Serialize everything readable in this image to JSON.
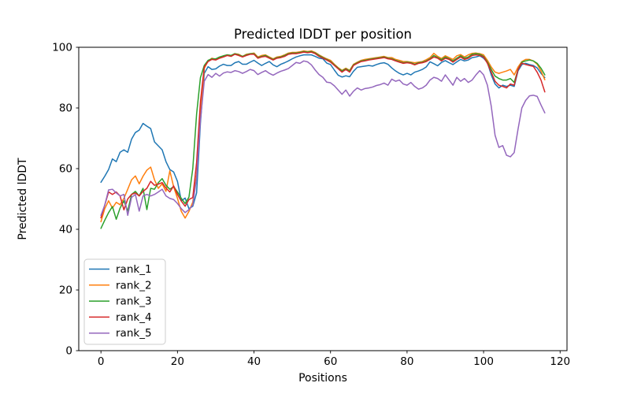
{
  "figure": {
    "background": "#ffffff",
    "axis_color": "#000000",
    "title": "Predicted lDDT per position",
    "xlabel": "Positions",
    "ylabel": "Predicted lDDT"
  },
  "legend": {
    "position": "lower left",
    "border_color": "#cccccc",
    "entries": [
      "rank_1",
      "rank_2",
      "rank_3",
      "rank_4",
      "rank_5"
    ]
  },
  "chart_data": {
    "type": "line",
    "title": "Predicted lDDT per position",
    "xlabel": "Positions",
    "ylabel": "Predicted lDDT",
    "xlim": [
      -5.8,
      121.8
    ],
    "ylim": [
      0,
      100
    ],
    "xticks": [
      0,
      20,
      40,
      60,
      80,
      100,
      120
    ],
    "yticks": [
      0,
      20,
      40,
      60,
      80,
      100
    ],
    "grid": false,
    "line_width": 1.5,
    "x": [
      0,
      1,
      2,
      3,
      4,
      5,
      6,
      7,
      8,
      9,
      10,
      11,
      12,
      13,
      14,
      15,
      16,
      17,
      18,
      19,
      20,
      21,
      22,
      23,
      24,
      25,
      26,
      27,
      28,
      29,
      30,
      31,
      32,
      33,
      34,
      35,
      36,
      37,
      38,
      39,
      40,
      41,
      42,
      43,
      44,
      45,
      46,
      47,
      48,
      49,
      50,
      51,
      52,
      53,
      54,
      55,
      56,
      57,
      58,
      59,
      60,
      61,
      62,
      63,
      64,
      65,
      66,
      67,
      68,
      69,
      70,
      71,
      72,
      73,
      74,
      75,
      76,
      77,
      78,
      79,
      80,
      81,
      82,
      83,
      84,
      85,
      86,
      87,
      88,
      89,
      90,
      91,
      92,
      93,
      94,
      95,
      96,
      97,
      98,
      99,
      100,
      101,
      102,
      103,
      104,
      105,
      106,
      107,
      108,
      109,
      110,
      111,
      112,
      113,
      114,
      115,
      116
    ],
    "series": [
      {
        "name": "rank_1",
        "color": "#1f77b4",
        "values": [
          55.5,
          57.5,
          59.7,
          63.2,
          62.3,
          65.4,
          66.2,
          65.4,
          69.7,
          71.9,
          72.7,
          74.9,
          74.0,
          73.2,
          68.8,
          67.5,
          66.2,
          62.3,
          59.7,
          58.9,
          55.8,
          49.4,
          50.3,
          46.8,
          47.6,
          52.0,
          75.0,
          91.4,
          93.6,
          92.7,
          92.9,
          93.8,
          94.4,
          94.0,
          94.0,
          94.9,
          95.3,
          94.4,
          94.4,
          95.1,
          95.7,
          94.8,
          94.0,
          94.7,
          95.3,
          94.2,
          93.6,
          94.4,
          94.9,
          95.5,
          96.2,
          96.8,
          97.2,
          97.5,
          97.5,
          97.5,
          97.0,
          96.4,
          96.2,
          94.8,
          94.3,
          92.5,
          90.8,
          90.2,
          90.6,
          90.3,
          92.1,
          93.4,
          93.6,
          93.8,
          94.0,
          93.8,
          94.3,
          94.7,
          94.9,
          94.4,
          93.2,
          92.2,
          91.4,
          90.9,
          91.4,
          90.9,
          91.8,
          92.2,
          92.7,
          93.5,
          95.2,
          94.6,
          93.9,
          95.0,
          95.6,
          94.9,
          94.3,
          95.2,
          96.0,
          95.5,
          95.8,
          96.6,
          96.8,
          97.2,
          96.4,
          95.0,
          90.9,
          87.9,
          86.6,
          87.5,
          87.1,
          87.5,
          87.1,
          92.2,
          94.3,
          94.7,
          94.3,
          94.0,
          93.2,
          91.4,
          90.0
        ]
      },
      {
        "name": "rank_2",
        "color": "#ff7f0e",
        "values": [
          42.5,
          46.8,
          49.4,
          47.0,
          48.9,
          48.1,
          50.2,
          53.2,
          56.3,
          57.6,
          55.0,
          57.5,
          59.5,
          60.5,
          56.3,
          53.5,
          55.0,
          52.5,
          59.3,
          54.0,
          50.2,
          45.9,
          43.7,
          45.9,
          49.0,
          58.0,
          79.0,
          93.0,
          95.5,
          96.4,
          96.0,
          96.6,
          97.0,
          97.5,
          97.3,
          97.9,
          97.7,
          97.0,
          97.7,
          97.9,
          98.1,
          96.8,
          97.3,
          97.5,
          96.8,
          96.2,
          96.8,
          97.0,
          97.5,
          98.1,
          98.3,
          98.3,
          98.5,
          98.8,
          98.6,
          98.8,
          98.3,
          97.5,
          96.8,
          96.2,
          95.7,
          94.4,
          93.3,
          92.4,
          93.1,
          92.4,
          94.4,
          95.1,
          95.7,
          96.0,
          96.2,
          96.4,
          96.6,
          96.8,
          97.0,
          96.6,
          96.6,
          96.0,
          95.7,
          95.3,
          95.3,
          95.1,
          94.9,
          95.1,
          95.3,
          95.9,
          96.6,
          98.0,
          97.0,
          96.3,
          97.2,
          96.6,
          96.0,
          97.2,
          97.6,
          96.8,
          97.5,
          98.0,
          98.1,
          97.9,
          97.5,
          95.7,
          93.5,
          91.8,
          91.4,
          91.8,
          92.2,
          92.7,
          90.9,
          93.5,
          95.3,
          96.0,
          96.0,
          95.5,
          94.4,
          92.2,
          89.3
        ]
      },
      {
        "name": "rank_3",
        "color": "#2ca02c",
        "values": [
          40.3,
          43.0,
          45.5,
          47.5,
          43.3,
          47.0,
          49.4,
          46.0,
          51.5,
          52.5,
          51.0,
          53.5,
          46.5,
          53.5,
          53.2,
          55.4,
          56.7,
          54.5,
          53.2,
          54.1,
          52.3,
          50.2,
          48.5,
          50.6,
          60.0,
          78.0,
          90.0,
          94.0,
          95.7,
          96.2,
          96.2,
          96.8,
          97.2,
          97.5,
          97.3,
          97.9,
          97.5,
          97.0,
          97.5,
          97.9,
          97.9,
          96.6,
          97.0,
          97.3,
          96.6,
          96.0,
          96.6,
          96.8,
          97.3,
          97.9,
          98.1,
          98.1,
          98.3,
          98.6,
          98.4,
          98.6,
          98.1,
          97.3,
          96.6,
          96.0,
          95.3,
          94.2,
          93.1,
          92.2,
          92.9,
          92.2,
          94.2,
          94.9,
          95.5,
          95.7,
          96.0,
          96.2,
          96.4,
          96.6,
          96.8,
          96.4,
          96.2,
          95.7,
          95.3,
          94.9,
          95.1,
          94.9,
          94.4,
          94.9,
          95.1,
          95.5,
          96.2,
          97.3,
          96.6,
          95.9,
          96.8,
          96.2,
          95.5,
          96.4,
          97.2,
          96.4,
          96.8,
          97.7,
          97.9,
          97.7,
          97.0,
          95.1,
          92.7,
          90.5,
          89.7,
          89.2,
          89.2,
          89.7,
          88.4,
          92.7,
          95.1,
          95.5,
          95.8,
          95.5,
          94.7,
          93.1,
          90.9
        ]
      },
      {
        "name": "rank_4",
        "color": "#d62728",
        "values": [
          43.8,
          48.0,
          52.3,
          51.5,
          52.3,
          51.0,
          46.4,
          50.0,
          51.5,
          52.0,
          51.0,
          52.5,
          53.5,
          55.8,
          54.5,
          54.9,
          55.4,
          53.6,
          52.3,
          54.3,
          51.5,
          49.3,
          47.6,
          49.8,
          50.5,
          62.0,
          82.0,
          93.5,
          95.3,
          96.0,
          95.8,
          96.4,
          96.8,
          97.3,
          97.0,
          97.7,
          97.3,
          96.8,
          97.3,
          97.7,
          97.7,
          96.4,
          96.8,
          97.0,
          96.4,
          95.8,
          96.4,
          96.6,
          97.0,
          97.7,
          97.9,
          97.9,
          98.1,
          98.4,
          98.2,
          98.4,
          97.9,
          97.0,
          96.4,
          95.8,
          95.1,
          94.0,
          92.9,
          91.8,
          92.7,
          91.8,
          94.0,
          94.7,
          95.3,
          95.5,
          95.8,
          96.0,
          96.2,
          96.4,
          96.6,
          96.2,
          96.0,
          95.5,
          95.1,
          94.7,
          94.9,
          94.7,
          94.2,
          94.7,
          94.9,
          95.3,
          96.0,
          96.8,
          96.4,
          95.5,
          96.4,
          96.0,
          95.1,
          96.0,
          96.8,
          96.0,
          96.4,
          97.3,
          97.5,
          97.3,
          96.8,
          94.7,
          91.8,
          88.8,
          87.5,
          87.1,
          86.6,
          87.9,
          87.5,
          92.7,
          94.8,
          94.3,
          94.0,
          93.7,
          91.8,
          89.2,
          85.3
        ]
      },
      {
        "name": "rank_5",
        "color": "#9467bd",
        "values": [
          44.6,
          48.0,
          53.0,
          53.2,
          52.0,
          51.0,
          51.5,
          44.6,
          50.5,
          51.5,
          46.0,
          51.0,
          51.5,
          51.0,
          51.5,
          52.3,
          53.2,
          51.0,
          50.2,
          49.8,
          48.5,
          46.8,
          45.5,
          46.5,
          48.0,
          57.0,
          76.0,
          88.8,
          91.0,
          90.1,
          91.4,
          90.5,
          91.5,
          91.9,
          91.7,
          92.3,
          92.0,
          91.4,
          92.0,
          92.7,
          92.3,
          91.0,
          91.7,
          92.3,
          91.4,
          90.8,
          91.5,
          92.1,
          92.5,
          93.0,
          94.0,
          95.0,
          94.7,
          95.5,
          95.2,
          94.2,
          92.5,
          91.0,
          90.1,
          88.5,
          88.3,
          87.3,
          85.9,
          84.5,
          85.9,
          83.9,
          85.5,
          86.6,
          85.9,
          86.4,
          86.6,
          86.9,
          87.4,
          87.7,
          88.2,
          87.5,
          89.5,
          88.8,
          89.2,
          87.9,
          87.5,
          88.4,
          87.1,
          86.2,
          86.6,
          87.5,
          89.2,
          90.1,
          89.7,
          88.8,
          90.9,
          89.2,
          87.5,
          90.1,
          88.8,
          89.7,
          88.4,
          89.2,
          90.9,
          92.3,
          90.9,
          87.5,
          80.6,
          71.0,
          67.0,
          67.6,
          64.4,
          63.9,
          65.3,
          73.0,
          80.0,
          82.5,
          84.0,
          84.2,
          83.8,
          81.0,
          78.4
        ]
      }
    ]
  }
}
